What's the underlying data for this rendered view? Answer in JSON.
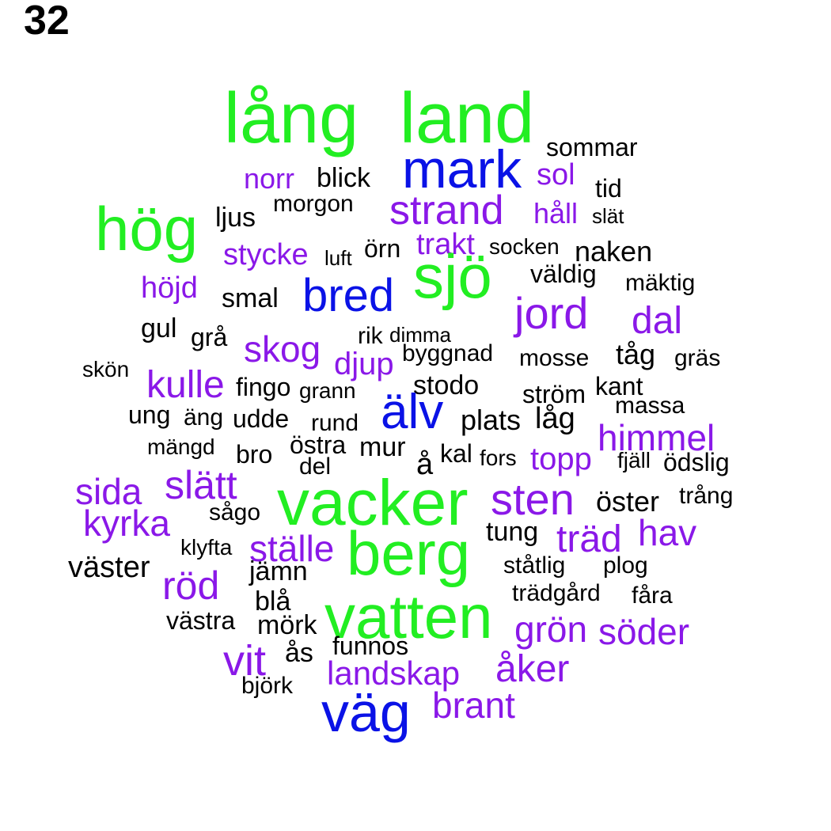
{
  "page_number": "32",
  "colors": {
    "green": "#22ee22",
    "blue": "#0a12e6",
    "purple": "#8a18e8",
    "black": "#000000"
  },
  "words": [
    {
      "text": "lång",
      "color": "green"
    },
    {
      "text": "land",
      "color": "green"
    },
    {
      "text": "sommar",
      "color": "black"
    },
    {
      "text": "mark",
      "color": "blue"
    },
    {
      "text": "norr",
      "color": "purple"
    },
    {
      "text": "blick",
      "color": "black"
    },
    {
      "text": "sol",
      "color": "purple"
    },
    {
      "text": "tid",
      "color": "black"
    },
    {
      "text": "hög",
      "color": "green"
    },
    {
      "text": "ljus",
      "color": "black"
    },
    {
      "text": "morgon",
      "color": "black"
    },
    {
      "text": "strand",
      "color": "purple"
    },
    {
      "text": "håll",
      "color": "purple"
    },
    {
      "text": "slät",
      "color": "black"
    },
    {
      "text": "stycke",
      "color": "purple"
    },
    {
      "text": "luft",
      "color": "black"
    },
    {
      "text": "örn",
      "color": "black"
    },
    {
      "text": "trakt",
      "color": "purple"
    },
    {
      "text": "socken",
      "color": "black"
    },
    {
      "text": "naken",
      "color": "black"
    },
    {
      "text": "sjö",
      "color": "green"
    },
    {
      "text": "väldig",
      "color": "black"
    },
    {
      "text": "höjd",
      "color": "purple"
    },
    {
      "text": "smal",
      "color": "black"
    },
    {
      "text": "bred",
      "color": "blue"
    },
    {
      "text": "mäktig",
      "color": "black"
    },
    {
      "text": "jord",
      "color": "purple"
    },
    {
      "text": "dal",
      "color": "purple"
    },
    {
      "text": "gul",
      "color": "black"
    },
    {
      "text": "grå",
      "color": "black"
    },
    {
      "text": "skog",
      "color": "purple"
    },
    {
      "text": "rik",
      "color": "black"
    },
    {
      "text": "dimma",
      "color": "black"
    },
    {
      "text": "tåg",
      "color": "black"
    },
    {
      "text": "skön",
      "color": "black"
    },
    {
      "text": "djup",
      "color": "purple"
    },
    {
      "text": "byggnad",
      "color": "black"
    },
    {
      "text": "mosse",
      "color": "black"
    },
    {
      "text": "gräs",
      "color": "black"
    },
    {
      "text": "kulle",
      "color": "purple"
    },
    {
      "text": "fingo",
      "color": "black"
    },
    {
      "text": "grann",
      "color": "black"
    },
    {
      "text": "stodo",
      "color": "black"
    },
    {
      "text": "kant",
      "color": "black"
    },
    {
      "text": "ström",
      "color": "black"
    },
    {
      "text": "älv",
      "color": "blue"
    },
    {
      "text": "massa",
      "color": "black"
    },
    {
      "text": "ung",
      "color": "black"
    },
    {
      "text": "äng",
      "color": "black"
    },
    {
      "text": "udde",
      "color": "black"
    },
    {
      "text": "rund",
      "color": "black"
    },
    {
      "text": "plats",
      "color": "black"
    },
    {
      "text": "låg",
      "color": "black"
    },
    {
      "text": "himmel",
      "color": "purple"
    },
    {
      "text": "mängd",
      "color": "black"
    },
    {
      "text": "östra",
      "color": "black"
    },
    {
      "text": "bro",
      "color": "black"
    },
    {
      "text": "mur",
      "color": "black"
    },
    {
      "text": "kal",
      "color": "black"
    },
    {
      "text": "fors",
      "color": "black"
    },
    {
      "text": "topp",
      "color": "purple"
    },
    {
      "text": "fjäll",
      "color": "black"
    },
    {
      "text": "ödslig",
      "color": "black"
    },
    {
      "text": "del",
      "color": "black"
    },
    {
      "text": "å",
      "color": "black"
    },
    {
      "text": "sida",
      "color": "purple"
    },
    {
      "text": "slätt",
      "color": "purple"
    },
    {
      "text": "vacker",
      "color": "green"
    },
    {
      "text": "sten",
      "color": "purple"
    },
    {
      "text": "öster",
      "color": "black"
    },
    {
      "text": "trång",
      "color": "black"
    },
    {
      "text": "kyrka",
      "color": "purple"
    },
    {
      "text": "sågo",
      "color": "black"
    },
    {
      "text": "tung",
      "color": "black"
    },
    {
      "text": "träd",
      "color": "purple"
    },
    {
      "text": "hav",
      "color": "purple"
    },
    {
      "text": "klyfta",
      "color": "black"
    },
    {
      "text": "ställe",
      "color": "purple"
    },
    {
      "text": "berg",
      "color": "green"
    },
    {
      "text": "väster",
      "color": "black"
    },
    {
      "text": "jämn",
      "color": "black"
    },
    {
      "text": "ståtlig",
      "color": "black"
    },
    {
      "text": "plog",
      "color": "black"
    },
    {
      "text": "röd",
      "color": "purple"
    },
    {
      "text": "trädgård",
      "color": "black"
    },
    {
      "text": "fåra",
      "color": "black"
    },
    {
      "text": "blå",
      "color": "black"
    },
    {
      "text": "vatten",
      "color": "green"
    },
    {
      "text": "västra",
      "color": "black"
    },
    {
      "text": "mörk",
      "color": "black"
    },
    {
      "text": "grön",
      "color": "purple"
    },
    {
      "text": "söder",
      "color": "purple"
    },
    {
      "text": "ås",
      "color": "black"
    },
    {
      "text": "funnos",
      "color": "black"
    },
    {
      "text": "vit",
      "color": "purple"
    },
    {
      "text": "åker",
      "color": "purple"
    },
    {
      "text": "landskap",
      "color": "purple"
    },
    {
      "text": "björk",
      "color": "black"
    },
    {
      "text": "brant",
      "color": "purple"
    },
    {
      "text": "väg",
      "color": "blue"
    }
  ]
}
